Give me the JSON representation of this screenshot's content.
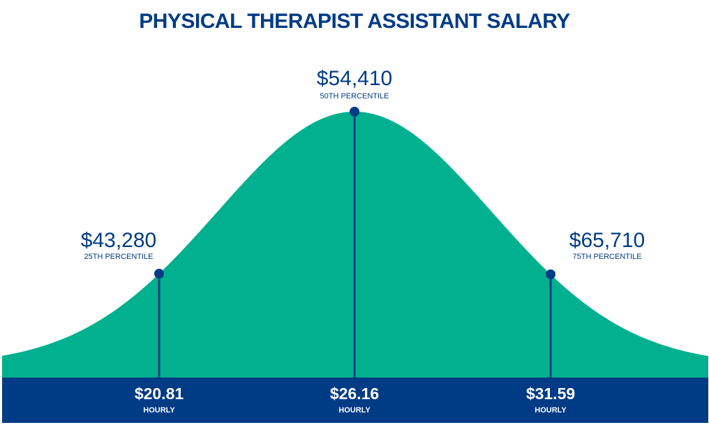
{
  "chart_data": {
    "type": "area",
    "title": "PHYSICAL THERAPIST ASSISTANT SALARY",
    "markers": [
      {
        "annual": "$43,280",
        "percentile": "25TH PERCENTILE",
        "hourly": "$20.81",
        "hourly_unit": "HOURLY"
      },
      {
        "annual": "$54,410",
        "percentile": "50TH PERCENTILE",
        "hourly": "$26.16",
        "hourly_unit": "HOURLY"
      },
      {
        "annual": "$65,710",
        "percentile": "75TH PERCENTILE",
        "hourly": "$31.59",
        "hourly_unit": "HOURLY"
      }
    ]
  },
  "colors": {
    "curve": "#00b08e",
    "navy": "#003b85",
    "bar_text": "#ffffff"
  }
}
